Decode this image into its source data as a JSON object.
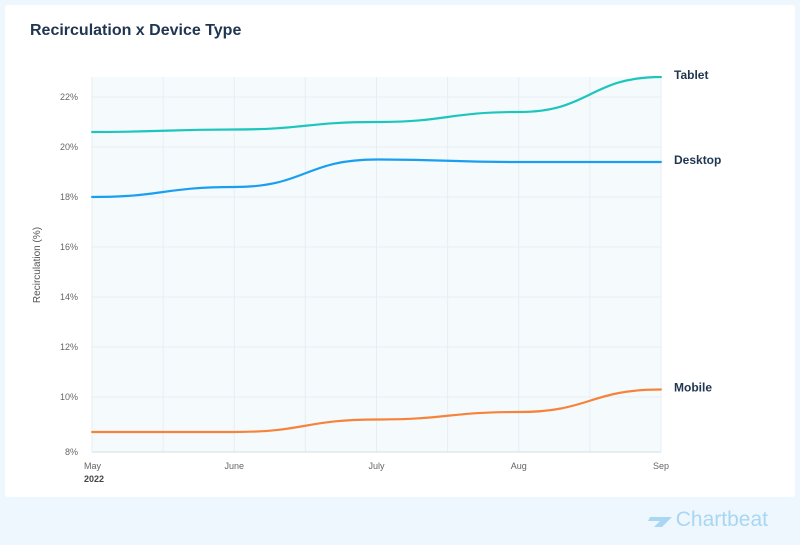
{
  "chart_data": {
    "type": "line",
    "title": "Recirculation x Device Type",
    "ylabel": "Recirculation (%)",
    "xlabel": "",
    "x": [
      "May",
      "June",
      "July",
      "Aug",
      "Sep"
    ],
    "x_sublabel": "2022",
    "ylim": [
      8,
      23.2
    ],
    "yticks": [
      8,
      10,
      12,
      14,
      16,
      18,
      20,
      22
    ],
    "ytick_labels": [
      "8%",
      "10%",
      "12%",
      "14%",
      "16%",
      "18%",
      "20%",
      "22%"
    ],
    "grid": true,
    "legend": "direct labels at right end of lines",
    "series": [
      {
        "name": "Tablet",
        "color": "#1cc6bd",
        "values": [
          20.6,
          20.7,
          21.0,
          21.4,
          22.8
        ]
      },
      {
        "name": "Desktop",
        "color": "#1a9ff0",
        "values": [
          18.0,
          18.4,
          19.5,
          19.4,
          19.4
        ]
      },
      {
        "name": "Mobile",
        "color": "#f7833a",
        "values": [
          8.6,
          8.6,
          9.1,
          9.4,
          10.3
        ]
      }
    ]
  },
  "brand": {
    "name": "Chartbeat",
    "color": "#a9d6f2"
  }
}
